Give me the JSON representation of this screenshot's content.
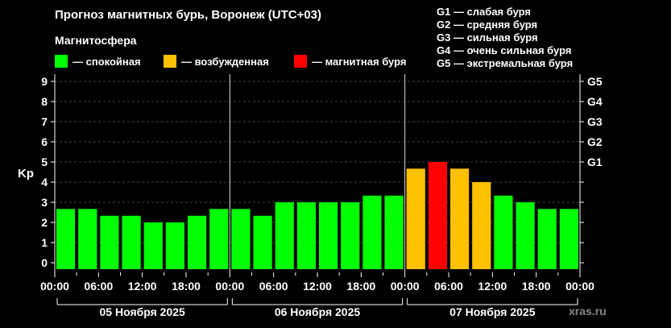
{
  "title": "Прогноз магнитных бурь, Воронеж (UTC+03)",
  "subtitle": "Магнитосфера",
  "legend": [
    {
      "label": "— спокойная",
      "color": "#00ff00"
    },
    {
      "label": "— возбужденная",
      "color": "#ffc000"
    },
    {
      "label": "— магнитная буря",
      "color": "#ff0000"
    }
  ],
  "storm_scale": [
    "G1 — слабая буря",
    "G2 — средняя буря",
    "G3 — сильная буря",
    "G4 — очень сильная буря",
    "G5 — экстремальная буря"
  ],
  "watermark": "xras.ru",
  "chart_data": {
    "type": "bar",
    "ylabel": "Kp",
    "ylim": [
      0,
      9
    ],
    "yticks": [
      "0",
      "1",
      "2",
      "3",
      "4",
      "5",
      "6",
      "7",
      "8",
      "9"
    ],
    "right_ticks": [
      {
        "label": "G1",
        "value": 5
      },
      {
        "label": "G2",
        "value": 6
      },
      {
        "label": "G3",
        "value": 7
      },
      {
        "label": "G4",
        "value": 8
      },
      {
        "label": "G5",
        "value": 9
      }
    ],
    "grid": true,
    "xtick_labels": [
      "00:00",
      "06:00",
      "12:00",
      "18:00",
      "00:00",
      "06:00",
      "12:00",
      "18:00",
      "00:00",
      "06:00",
      "12:00",
      "18:00",
      "00:00"
    ],
    "days": [
      "05 Ноября 2025",
      "06 Ноября 2025",
      "07 Ноября 2025"
    ],
    "values": [
      2.67,
      2.67,
      2.33,
      2.33,
      2.0,
      2.0,
      2.33,
      2.67,
      2.67,
      2.33,
      3.0,
      3.0,
      3.0,
      3.0,
      3.33,
      3.33,
      4.67,
      5.0,
      4.67,
      4.0,
      3.33,
      3.0,
      2.67,
      2.67
    ],
    "levels": [
      "quiet",
      "quiet",
      "quiet",
      "quiet",
      "quiet",
      "quiet",
      "quiet",
      "quiet",
      "quiet",
      "quiet",
      "quiet",
      "quiet",
      "quiet",
      "quiet",
      "quiet",
      "quiet",
      "active",
      "storm",
      "active",
      "active",
      "quiet",
      "quiet",
      "quiet",
      "quiet"
    ],
    "level_colors": {
      "quiet": "#00ff00",
      "active": "#ffc000",
      "storm": "#ff0000"
    }
  }
}
